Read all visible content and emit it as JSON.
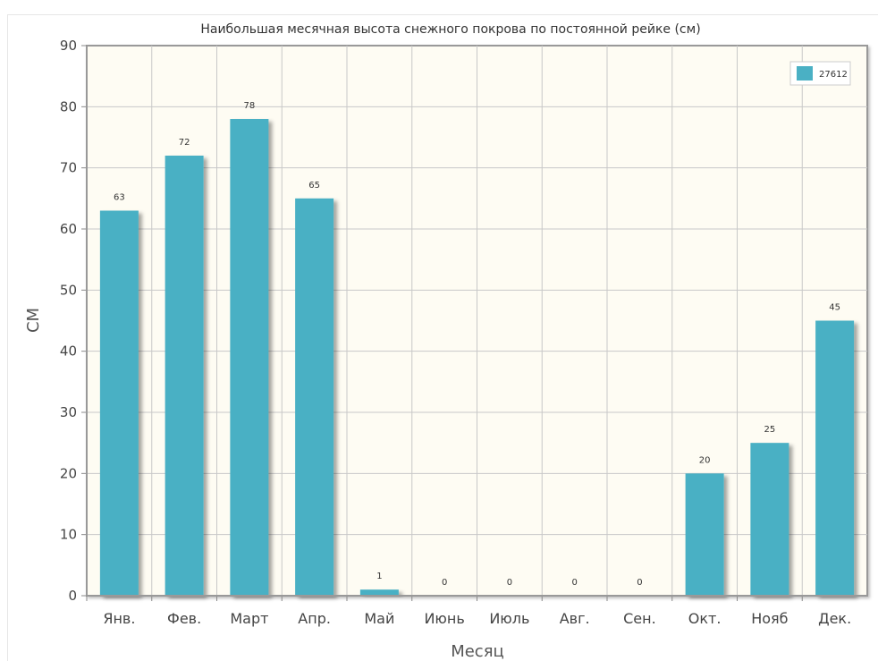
{
  "chart_data": {
    "type": "bar",
    "title": "Наибольшая месячная высота снежного покрова по постоянной рейке (см)",
    "xlabel": "Месяц",
    "ylabel": "СМ",
    "categories": [
      "Янв.",
      "Фев.",
      "Март",
      "Апр.",
      "Май",
      "Июнь",
      "Июль",
      "Авг.",
      "Сен.",
      "Окт.",
      "Нояб",
      "Дек."
    ],
    "series": [
      {
        "name": "27612",
        "color": "#4ab0c4",
        "values": [
          63,
          72,
          78,
          65,
          1,
          0,
          0,
          0,
          0,
          20,
          25,
          45
        ]
      }
    ],
    "ylim": [
      0,
      90
    ],
    "yticks": [
      0,
      10,
      20,
      30,
      40,
      50,
      60,
      70,
      80,
      90
    ],
    "grid": true,
    "legend_position": "top-right",
    "plot_background": "#fefcf3"
  }
}
